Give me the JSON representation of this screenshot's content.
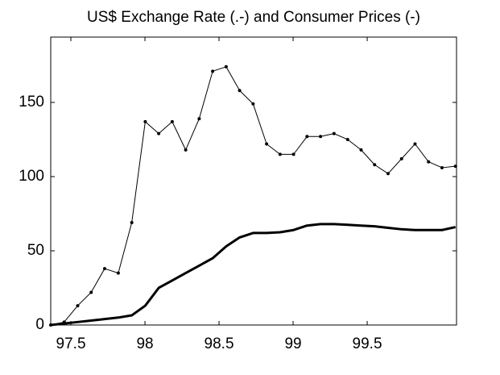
{
  "chart_data": {
    "type": "line",
    "title": "US$ Exchange Rate (.-) and Consumer Prices (-)",
    "x": [
      97.364,
      97.455,
      97.546,
      97.637,
      97.728,
      97.82,
      97.911,
      98.002,
      98.093,
      98.184,
      98.275,
      98.366,
      98.457,
      98.548,
      98.639,
      98.73,
      98.821,
      98.912,
      99.003,
      99.094,
      99.185,
      99.276,
      99.368,
      99.459,
      99.55,
      99.641,
      99.732,
      99.823,
      99.914,
      100.005,
      100.096
    ],
    "series": [
      {
        "name": "US$ Exchange Rate",
        "color": "#000000",
        "linewidth": 1,
        "marker": true,
        "values": [
          0,
          2,
          13,
          22,
          38,
          35,
          69,
          137,
          129,
          137,
          118,
          139,
          171,
          174,
          158,
          149,
          122,
          115,
          115,
          127,
          127,
          129,
          125,
          118,
          108,
          102,
          112,
          122,
          110,
          106,
          107
        ]
      },
      {
        "name": "Consumer Prices",
        "color": "#000000",
        "linewidth": 3,
        "marker": false,
        "values": [
          0,
          1,
          2,
          3,
          4,
          5,
          6.5,
          13,
          25,
          30,
          35,
          40,
          45,
          53,
          59,
          62,
          62,
          62.5,
          64,
          67,
          68,
          68,
          67.5,
          67,
          66.5,
          65.5,
          64.5,
          64,
          64,
          64,
          66
        ]
      }
    ],
    "xlim": [
      97.364,
      100.103
    ],
    "ylim": [
      0,
      194
    ],
    "xticks": [
      97.5,
      98,
      98.5,
      99,
      99.5
    ],
    "yticks": [
      0,
      50,
      100,
      150
    ]
  }
}
